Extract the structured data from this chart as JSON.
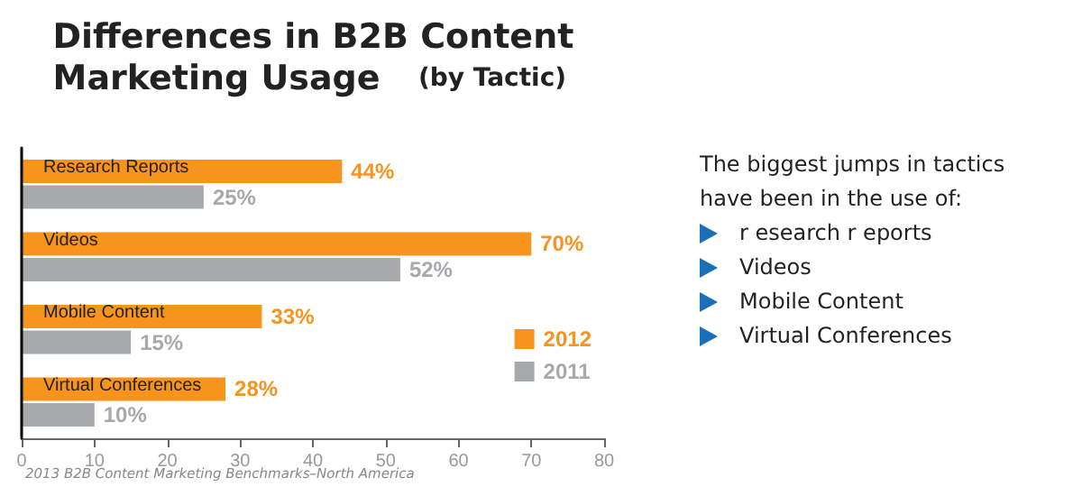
{
  "chart_data": {
    "type": "bar",
    "orientation": "horizontal",
    "title": "Differences in B2B Content Marketing Usage",
    "subtitle": "(by Tactic)",
    "categories": [
      "Research Reports",
      "Videos",
      "Mobile Content",
      "Virtual Conferences"
    ],
    "series": [
      {
        "name": "2012",
        "color": "#f7941d",
        "values": [
          44,
          70,
          33,
          28
        ],
        "value_labels": [
          "44%",
          "70%",
          "33%",
          "28%"
        ]
      },
      {
        "name": "2011",
        "color": "#a7a9ac",
        "values": [
          25,
          52,
          15,
          10
        ],
        "value_labels": [
          "25%",
          "52%",
          "15%",
          "10%"
        ]
      }
    ],
    "xlim": [
      0,
      80
    ],
    "xticks": [
      0,
      10,
      20,
      30,
      40,
      50,
      60,
      70,
      80
    ],
    "grid": false,
    "legend": "bottom right",
    "annotations": [
      "2013 B2B Content Marketing Benchmarks–North America",
      "The biggest jumps in tactics have been in the use of:",
      "r esearch r eports",
      "Videos",
      "Mobile Content",
      "Virtual Conferences"
    ]
  }
}
